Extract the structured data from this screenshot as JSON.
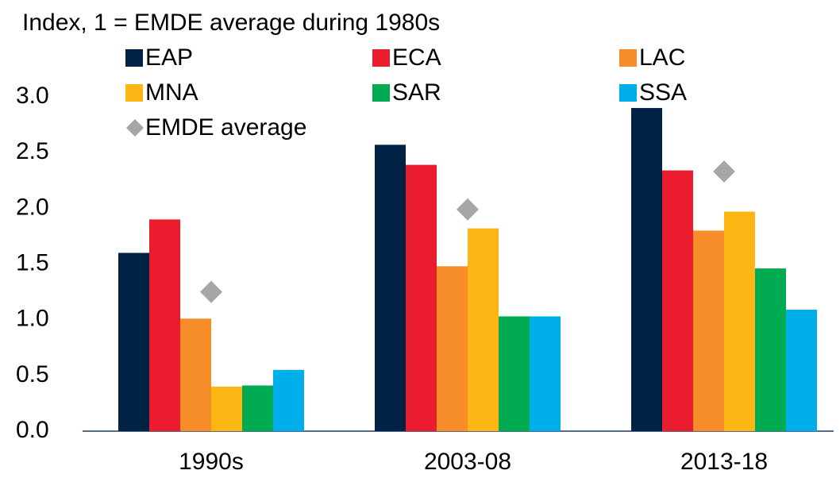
{
  "chart_data": {
    "type": "bar",
    "title": "Index, 1 = EMDE average during 1980s",
    "categories": [
      "1990s",
      "2003-08",
      "2013-18"
    ],
    "series": [
      {
        "name": "EAP",
        "color": "#002345",
        "values": [
          1.6,
          2.57,
          2.9
        ]
      },
      {
        "name": "ECA",
        "color": "#eb1c2d",
        "values": [
          1.9,
          2.39,
          2.34
        ]
      },
      {
        "name": "LAC",
        "color": "#f78d28",
        "values": [
          1.01,
          1.48,
          1.8
        ]
      },
      {
        "name": "MNA",
        "color": "#fdb714",
        "values": [
          0.4,
          1.82,
          1.97
        ]
      },
      {
        "name": "SAR",
        "color": "#00ab51",
        "values": [
          0.41,
          1.03,
          1.46
        ]
      },
      {
        "name": "SSA",
        "color": "#00aeea",
        "values": [
          0.55,
          1.03,
          1.09
        ]
      },
      {
        "name": "EMDE average",
        "color": "#a6a6a6",
        "type": "scatter",
        "marker": "diamond",
        "values": [
          1.25,
          1.99,
          2.33
        ]
      }
    ],
    "ylim": [
      0,
      3
    ],
    "yticks": [
      {
        "value": 0,
        "label": "0.0"
      },
      {
        "value": 0.5,
        "label": "0.5"
      },
      {
        "value": 1,
        "label": "1.0"
      },
      {
        "value": 1.5,
        "label": "1.5"
      },
      {
        "value": 2,
        "label": "2.0"
      },
      {
        "value": 2.5,
        "label": "2.5"
      },
      {
        "value": 3,
        "label": "3.0"
      }
    ],
    "grid": false
  }
}
